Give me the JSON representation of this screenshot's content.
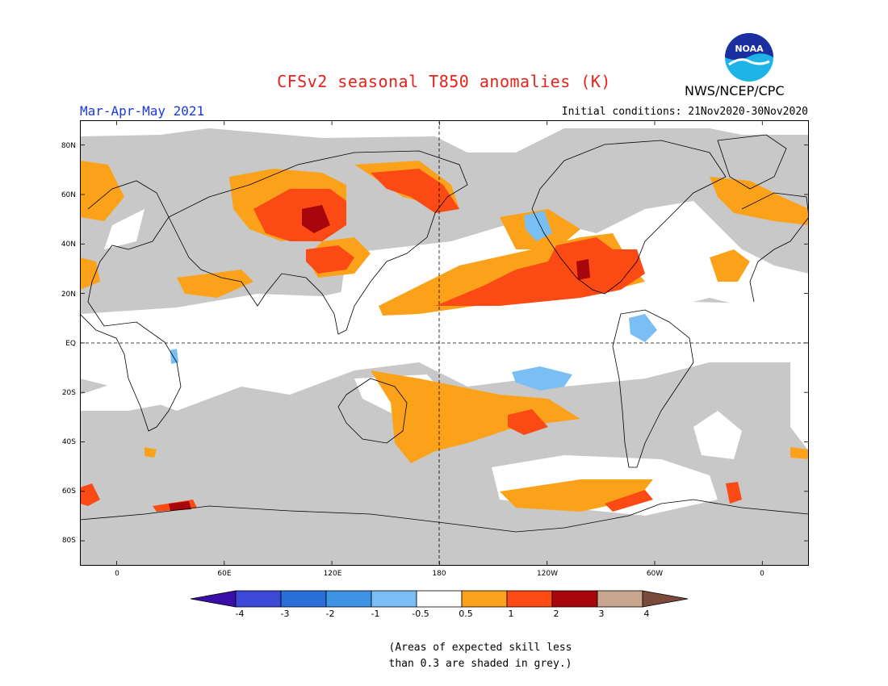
{
  "title": "CFSv2 seasonal T850 anomalies (K)",
  "period": "Mar-Apr-May 2021",
  "initial_conditions": "Initial conditions: 21Nov2020-30Nov2020",
  "agency": "NWS/NCEP/CPC",
  "logo_text": "NOAA",
  "axes": {
    "lat_ticks": [
      "80N",
      "60N",
      "40N",
      "20N",
      "EQ",
      "20S",
      "40S",
      "60S",
      "80S"
    ],
    "lon_ticks": [
      "0",
      "60E",
      "120E",
      "180",
      "120W",
      "60W",
      "0"
    ],
    "lon_range": [
      -20,
      385
    ],
    "lat_range": [
      -90,
      90
    ]
  },
  "colorbar": {
    "labels": [
      "-4",
      "-3",
      "-2",
      "-1",
      "-0.5",
      "0.5",
      "1",
      "2",
      "3",
      "4"
    ],
    "colors": [
      "#3a0ea8",
      "#3c48d6",
      "#2a6ed8",
      "#3e93e6",
      "#79bff4",
      "#ffffff",
      "#fba21a",
      "#fb4a14",
      "#a6060c",
      "#c8a58e",
      "#7a4a3a"
    ]
  },
  "colors": {
    "grey": "#c8c8c8",
    "orange": "#fba21a",
    "red": "#fb4a14",
    "darkred": "#a6060c",
    "lightblue": "#79bff4",
    "medblue": "#3e93e6"
  },
  "note_line1": "(Areas of expected skill less",
  "note_line2": "than 0.3 are shaded in grey.)"
}
